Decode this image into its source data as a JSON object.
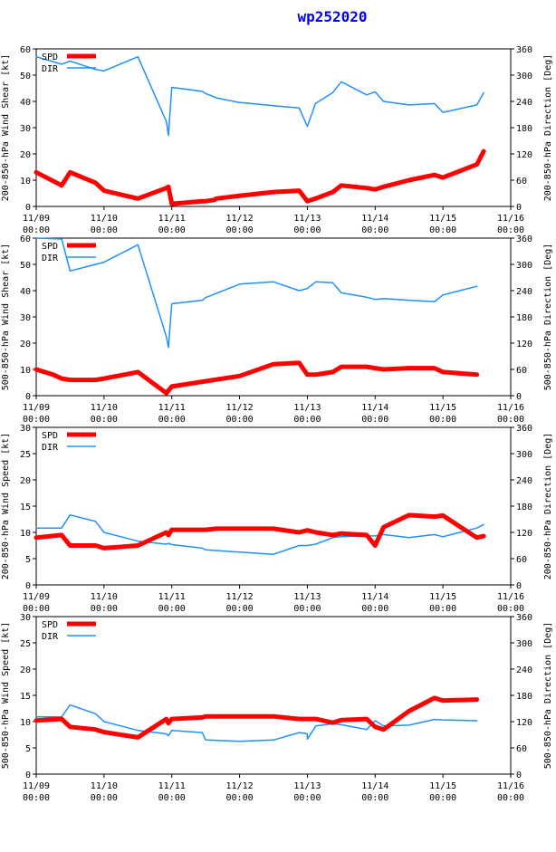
{
  "colors": {
    "spd": "#ff0000",
    "dir": "#1e90ff",
    "axis": "#000000",
    "grid": "#dddddd",
    "title": "#0000ee"
  },
  "chart_data": {
    "type": "line",
    "title": "wp252020",
    "x_tick_labels": [
      [
        "11/09",
        "00:00"
      ],
      [
        "11/10",
        "00:00"
      ],
      [
        "11/11",
        "00:00"
      ],
      [
        "11/12",
        "00:00"
      ],
      [
        "11/13",
        "00:00"
      ],
      [
        "11/14",
        "00:00"
      ],
      [
        "11/15",
        "00:00"
      ],
      [
        "11/16",
        "00:00"
      ]
    ],
    "xlim_days": [
      0,
      7
    ],
    "legend": [
      "SPD",
      "DIR"
    ],
    "panels": [
      {
        "ylabel_left": "200-850-hPa Wind Shear [kt]",
        "ylabel_right": "200-850-hPa Direction [Deg]",
        "ylim_left": [
          0,
          60
        ],
        "yticks_left": [
          0,
          10,
          20,
          30,
          40,
          50,
          60
        ],
        "ylim_right": [
          0,
          360
        ],
        "yticks_right": [
          0,
          60,
          120,
          180,
          240,
          300,
          360
        ],
        "series": [
          {
            "name": "SPD",
            "axis": "left",
            "x": [
              0,
              0.375,
              0.5,
              0.875,
              1.0,
              1.5,
              1.92,
              1.95,
              2.0,
              2.45,
              2.5,
              2.625,
              2.66,
              2.98,
              3.5,
              3.88,
              4.0,
              4.0,
              4.12,
              4.375,
              4.5,
              4.875,
              5.0,
              5.0,
              5.125,
              5.5,
              5.875,
              6.0,
              6.5,
              6.6
            ],
            "y": [
              13,
              8,
              13,
              9,
              6,
              3,
              7,
              7.5,
              1,
              2,
              2,
              2.5,
              3,
              4,
              5.5,
              6,
              2,
              2,
              3,
              5.5,
              8,
              7,
              6.5,
              6.5,
              7.5,
              10,
              12,
              11,
              16,
              21
            ]
          },
          {
            "name": "DIR",
            "axis": "right",
            "x": [
              0,
              0.375,
              0.5,
              0.875,
              1.0,
              1.5,
              1.92,
              1.95,
              2.0,
              2.45,
              2.5,
              2.66,
              2.98,
              3.5,
              3.88,
              4.0,
              4.0,
              4.12,
              4.375,
              4.5,
              4.875,
              5.0,
              5.0,
              5.125,
              5.5,
              5.875,
              6.0,
              6.5,
              6.6
            ],
            "y": [
              342,
              325,
              332,
              313,
              310,
              342,
              194,
              162,
              272,
              263,
              258,
              248,
              238,
              230,
              225,
              183,
              183,
              235,
              260,
              285,
              255,
              262,
              262,
              240,
              232,
              235,
              215,
              232,
              260
            ]
          }
        ]
      },
      {
        "ylabel_left": "500-850-hPa Wind Shear [kt]",
        "ylabel_right": "500-850-hPa Direction [Deg]",
        "ylim_left": [
          0,
          60
        ],
        "yticks_left": [
          0,
          10,
          20,
          30,
          40,
          50,
          60
        ],
        "ylim_right": [
          0,
          360
        ],
        "yticks_right": [
          0,
          60,
          120,
          180,
          240,
          300,
          360
        ],
        "series": [
          {
            "name": "SPD",
            "axis": "left",
            "x": [
              0,
              0.25,
              0.375,
              0.5,
              0.875,
              1.0,
              1.5,
              1.92,
              2.0,
              2.125,
              3.0,
              3.5,
              3.88,
              4.0,
              4.125,
              4.375,
              4.5,
              4.875,
              5.0,
              5.125,
              5.5,
              5.875,
              6.0,
              6.5
            ],
            "y": [
              10,
              8,
              6.5,
              6,
              6,
              6.5,
              9,
              1,
              3.5,
              4,
              7.5,
              12,
              12.5,
              8,
              8,
              9,
              11,
              11,
              10.5,
              10,
              10.5,
              10.5,
              9,
              8
            ]
          },
          {
            "name": "DIR",
            "axis": "right",
            "x": [
              0,
              0.375,
              0.5,
              0.875,
              1.0,
              1.5,
              1.92,
              1.95,
              2.0,
              2.45,
              2.5,
              3.0,
              3.5,
              3.88,
              4.0,
              4.0,
              4.125,
              4.375,
              4.5,
              4.875,
              5.0,
              5.125,
              5.5,
              5.875,
              6.0,
              6.5
            ],
            "y": [
              360,
              358,
              285,
              300,
              305,
              345,
              135,
              110,
              210,
              218,
              224,
              255,
              260,
              240,
              245,
              245,
              260,
              258,
              235,
              225,
              220,
              222,
              218,
              215,
              230,
              250
            ]
          }
        ]
      },
      {
        "ylabel_left": "200-850-hPa Wind Speed [kt]",
        "ylabel_right": "200-850-hPa Direction [Deg]",
        "ylim_left": [
          0,
          30
        ],
        "yticks_left": [
          0,
          5,
          10,
          15,
          20,
          25,
          30
        ],
        "ylim_right": [
          0,
          360
        ],
        "yticks_right": [
          0,
          60,
          120,
          180,
          240,
          300,
          360
        ],
        "series": [
          {
            "name": "SPD",
            "axis": "left",
            "x": [
              0,
              0.375,
              0.5,
              0.875,
              1.0,
              1.5,
              1.92,
              1.95,
              2.0,
              2.45,
              2.5,
              2.66,
              2.98,
              3.5,
              3.88,
              4.0,
              4.125,
              4.375,
              4.5,
              4.875,
              5.0,
              5.125,
              5.5,
              5.875,
              6.0,
              6.5,
              6.6
            ],
            "y": [
              9,
              9.5,
              7.5,
              7.5,
              7,
              7.5,
              10,
              9.5,
              10.5,
              10.5,
              10.5,
              10.7,
              10.7,
              10.7,
              10,
              10.4,
              10,
              9.5,
              9.8,
              9.5,
              7.5,
              11,
              13.3,
              13,
              13.2,
              9,
              9.3
            ]
          },
          {
            "name": "DIR",
            "axis": "right",
            "x": [
              0,
              0.375,
              0.5,
              0.875,
              1.0,
              1.5,
              1.92,
              1.95,
              2.0,
              2.45,
              2.5,
              3.0,
              3.5,
              3.88,
              4.0,
              4.0,
              4.125,
              4.375,
              4.5,
              4.875,
              5.0,
              5.125,
              5.5,
              5.875,
              6.0,
              6.5,
              6.6
            ],
            "y": [
              130,
              130,
              160,
              145,
              120,
              100,
              93,
              95,
              92,
              84,
              80,
              75,
              70,
              90,
              90,
              90,
              93,
              108,
              110,
              112,
              112,
              115,
              108,
              115,
              110,
              130,
              138
            ]
          }
        ]
      },
      {
        "ylabel_left": "500-850-hPa Wind Speed [kt]",
        "ylabel_right": "500-850-hPa Direction [Deg]",
        "ylim_left": [
          0,
          30
        ],
        "yticks_left": [
          0,
          5,
          10,
          15,
          20,
          25,
          30
        ],
        "ylim_right": [
          0,
          360
        ],
        "yticks_right": [
          0,
          60,
          120,
          180,
          240,
          300,
          360
        ],
        "series": [
          {
            "name": "SPD",
            "axis": "left",
            "x": [
              0,
              0.375,
              0.5,
              0.875,
              1.0,
              1.5,
              1.92,
              1.95,
              2.0,
              2.45,
              2.5,
              3.0,
              3.5,
              3.88,
              4.0,
              4.125,
              4.375,
              4.5,
              4.875,
              5.0,
              5.125,
              5.5,
              5.875,
              6.0,
              6.5
            ],
            "y": [
              10.2,
              10.5,
              9,
              8.5,
              8,
              7,
              10.5,
              9.7,
              10.5,
              10.8,
              11,
              11,
              11,
              10.5,
              10.5,
              10.5,
              9.8,
              10.3,
              10.5,
              9,
              8.5,
              12,
              14.5,
              14,
              14.2
            ]
          },
          {
            "name": "DIR",
            "axis": "right",
            "x": [
              0,
              0.375,
              0.5,
              0.875,
              1.0,
              1.5,
              1.92,
              1.95,
              2.0,
              2.45,
              2.5,
              3.0,
              3.5,
              3.88,
              4.0,
              4.0,
              4.125,
              4.375,
              4.5,
              4.875,
              5.0,
              5.125,
              5.5,
              5.875,
              6.0,
              6.5
            ],
            "y": [
              131,
              131,
              158,
              138,
              120,
              100,
              92,
              88,
              100,
              95,
              78,
              75,
              78,
              95,
              92,
              80,
              110,
              115,
              113,
              102,
              122,
              110,
              112,
              125,
              124,
              122
            ]
          }
        ]
      }
    ]
  }
}
